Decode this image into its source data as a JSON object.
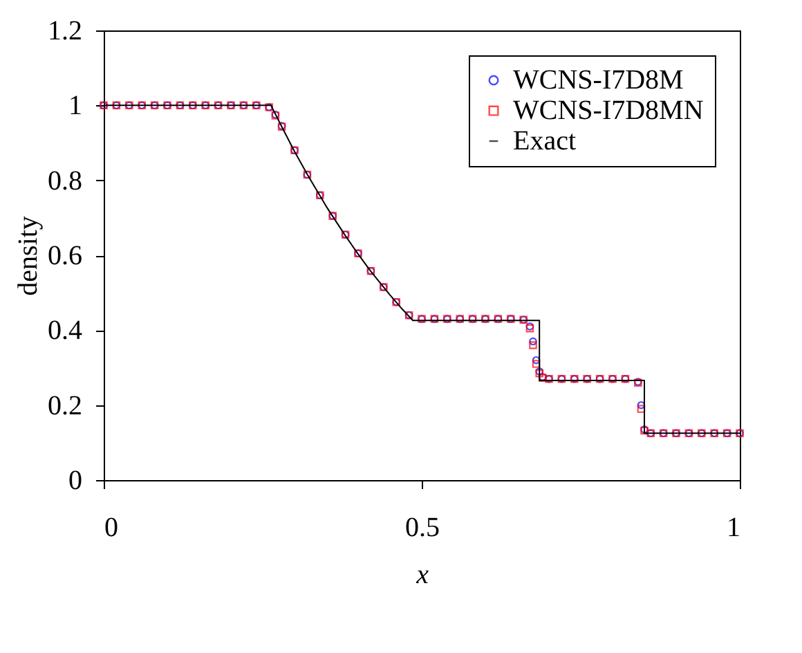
{
  "chart_data": {
    "type": "scatter",
    "xlabel": "x",
    "ylabel": "density",
    "xlim": [
      0,
      1
    ],
    "ylim": [
      0,
      1.2
    ],
    "xticks": [
      0,
      0.5,
      1
    ],
    "yticks": [
      0,
      0.2,
      0.4,
      0.6,
      0.8,
      1,
      1.2
    ],
    "grid": false,
    "legend": "top right",
    "x": [
      0,
      0.02,
      0.04,
      0.06,
      0.08,
      0.1,
      0.12,
      0.14,
      0.16,
      0.18,
      0.2,
      0.22,
      0.24,
      0.26,
      0.27,
      0.28,
      0.3,
      0.32,
      0.34,
      0.36,
      0.38,
      0.4,
      0.42,
      0.44,
      0.46,
      0.48,
      0.5,
      0.52,
      0.54,
      0.56,
      0.58,
      0.6,
      0.62,
      0.64,
      0.66,
      0.67,
      0.675,
      0.68,
      0.685,
      0.69,
      0.7,
      0.72,
      0.74,
      0.76,
      0.78,
      0.8,
      0.82,
      0.84,
      0.845,
      0.85,
      0.86,
      0.88,
      0.9,
      0.92,
      0.94,
      0.96,
      0.98,
      1
    ],
    "series": [
      {
        "name": "WCNS-I7D8M",
        "marker": "circle",
        "color": "#0000ff",
        "values": [
          1,
          1,
          1,
          1,
          1,
          1,
          1,
          1,
          1,
          1,
          1,
          1,
          1,
          0.995,
          0.975,
          0.945,
          0.88,
          0.815,
          0.76,
          0.705,
          0.655,
          0.605,
          0.558,
          0.515,
          0.475,
          0.44,
          0.43,
          0.43,
          0.43,
          0.43,
          0.43,
          0.43,
          0.43,
          0.43,
          0.428,
          0.41,
          0.37,
          0.32,
          0.29,
          0.275,
          0.27,
          0.27,
          0.27,
          0.27,
          0.27,
          0.27,
          0.27,
          0.262,
          0.2,
          0.135,
          0.125,
          0.125,
          0.125,
          0.125,
          0.125,
          0.125,
          0.125,
          0.125
        ]
      },
      {
        "name": "WCNS-I7D8MN",
        "marker": "square",
        "color": "#ff0000",
        "values": [
          1,
          1,
          1,
          1,
          1,
          1,
          1,
          1,
          1,
          1,
          1,
          1,
          1,
          0.995,
          0.973,
          0.943,
          0.88,
          0.815,
          0.76,
          0.705,
          0.655,
          0.605,
          0.558,
          0.515,
          0.475,
          0.44,
          0.43,
          0.43,
          0.43,
          0.43,
          0.43,
          0.43,
          0.43,
          0.43,
          0.428,
          0.405,
          0.36,
          0.31,
          0.285,
          0.273,
          0.27,
          0.27,
          0.27,
          0.27,
          0.27,
          0.27,
          0.27,
          0.26,
          0.19,
          0.132,
          0.125,
          0.125,
          0.125,
          0.125,
          0.125,
          0.125,
          0.125,
          0.125
        ]
      },
      {
        "name": "Exact",
        "type": "line",
        "line_style": "solid",
        "color": "#000000",
        "x": [
          0,
          0.263,
          0.28,
          0.3,
          0.32,
          0.35,
          0.38,
          0.4,
          0.42,
          0.45,
          0.47,
          0.486,
          0.685,
          0.685,
          0.85,
          0.85,
          1
        ],
        "values": [
          1,
          1,
          0.943,
          0.877,
          0.816,
          0.73,
          0.652,
          0.603,
          0.557,
          0.494,
          0.455,
          0.426,
          0.426,
          0.266,
          0.266,
          0.125,
          0.125
        ]
      }
    ]
  }
}
